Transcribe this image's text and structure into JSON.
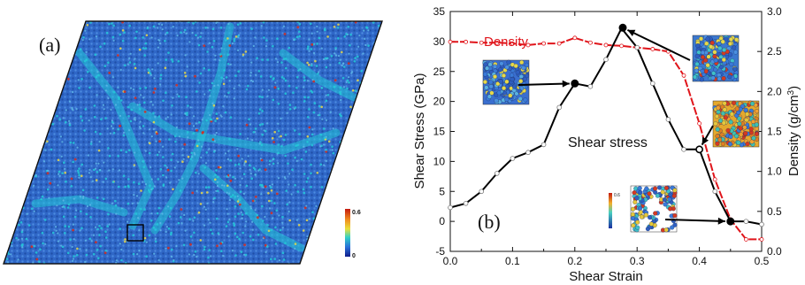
{
  "panel_a": {
    "label": "(a)",
    "colorbar": {
      "max_label": "0.6",
      "min_label": "0"
    },
    "colors": {
      "base": "#2f67c7",
      "cluster": "#25c9d8",
      "hot": "#d62b1d",
      "warm": "#e7d84a"
    }
  },
  "panel_b": {
    "label": "(b)",
    "colorbar_max_label": "0.6"
  },
  "chart_data": {
    "type": "line",
    "xlabel": "Shear Strain",
    "ylabel": "Shear Stress (GPa)",
    "ylabel_right": "Density (g/cm",
    "ylabel_right_sup": "3",
    "ylabel_right_close": ")",
    "xlim": [
      0.0,
      0.5
    ],
    "ylim": [
      -5,
      35
    ],
    "ylim_right": [
      0.0,
      3.0
    ],
    "x_ticks": [
      "0.0",
      "0.1",
      "0.2",
      "0.3",
      "0.4",
      "0.5"
    ],
    "y_ticks": [
      "-5",
      "0",
      "5",
      "10",
      "15",
      "20",
      "25",
      "30",
      "35"
    ],
    "y_right_ticks": [
      "0.0",
      "0.5",
      "1.0",
      "1.5",
      "2.0",
      "2.5",
      "3.0"
    ],
    "series": [
      {
        "name": "Shear stress",
        "axis": "left",
        "color": "#000000",
        "x": [
          0.0,
          0.025,
          0.05,
          0.075,
          0.1,
          0.125,
          0.15,
          0.175,
          0.2,
          0.225,
          0.25,
          0.275,
          0.3,
          0.325,
          0.35,
          0.375,
          0.4,
          0.425,
          0.45,
          0.475,
          0.5
        ],
        "y": [
          2.3,
          3.0,
          5.0,
          8.0,
          10.5,
          11.5,
          12.8,
          19.0,
          23.0,
          22.5,
          27.0,
          32.2,
          29.0,
          23.0,
          17.0,
          12.0,
          12.0,
          5.0,
          0.0,
          0.0,
          -0.5
        ]
      },
      {
        "name": "Density",
        "axis": "right",
        "color": "#e0151b",
        "x": [
          0.0,
          0.025,
          0.05,
          0.075,
          0.1,
          0.125,
          0.15,
          0.175,
          0.2,
          0.225,
          0.25,
          0.275,
          0.3,
          0.325,
          0.35,
          0.375,
          0.4,
          0.425,
          0.45,
          0.475,
          0.5
        ],
        "y": [
          2.62,
          2.62,
          2.61,
          2.61,
          2.6,
          2.58,
          2.6,
          2.6,
          2.67,
          2.61,
          2.58,
          2.57,
          2.55,
          2.53,
          2.5,
          2.2,
          1.6,
          0.9,
          0.4,
          0.15,
          0.15
        ]
      }
    ],
    "highlight_points": [
      {
        "x": 0.2,
        "y": 23.0
      },
      {
        "x": 0.277,
        "y": 32.3
      },
      {
        "x": 0.4,
        "y": 12.0
      },
      {
        "x": 0.45,
        "y": 0.0
      }
    ],
    "annotations": [
      "Density",
      "Shear stress"
    ]
  }
}
